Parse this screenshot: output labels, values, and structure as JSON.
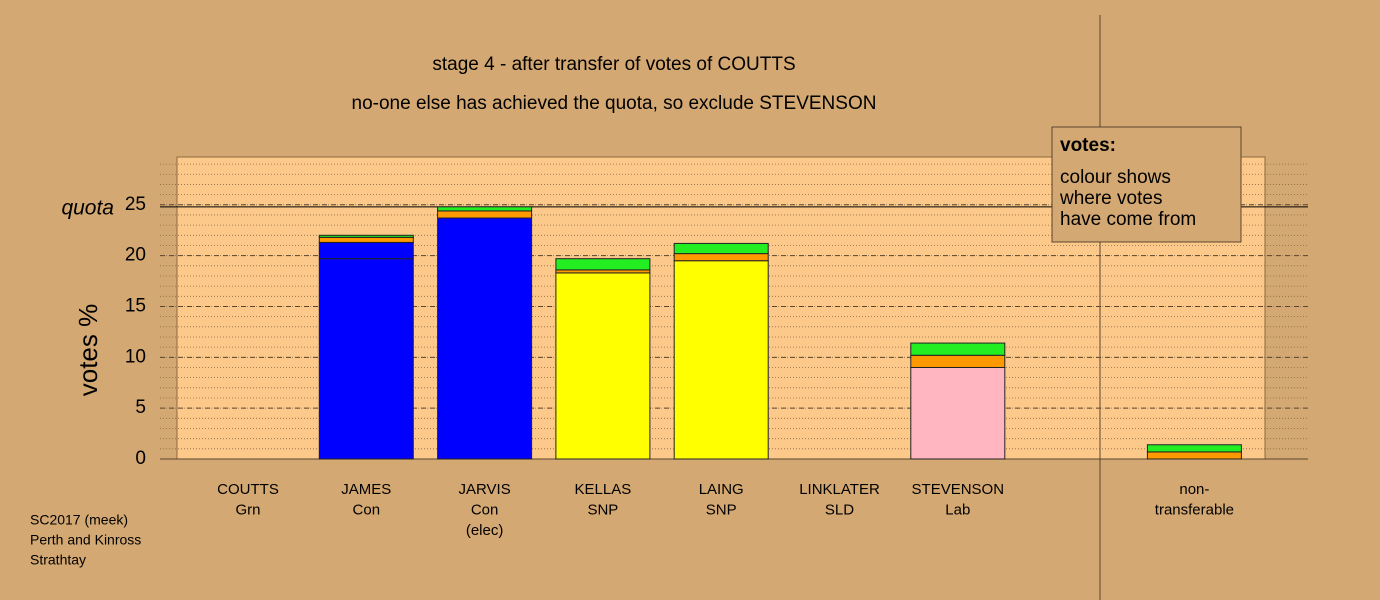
{
  "chart_data": {
    "type": "bar",
    "title": "stage 4 - after transfer of votes of COUTTS",
    "subtitle": "no-one else has achieved the quota, so exclude STEVENSON",
    "y_label": "votes %",
    "categories": [
      [
        "COUTTS",
        "Grn"
      ],
      [
        "JAMES",
        "Con"
      ],
      [
        "JARVIS",
        "Con",
        "(elec)"
      ],
      [
        "KELLAS",
        "SNP"
      ],
      [
        "LAING",
        "SNP"
      ],
      [
        "LINKLATER",
        "SLD"
      ],
      [
        "STEVENSON",
        "Lab"
      ],
      null,
      [
        "non-",
        "transferable"
      ]
    ],
    "series": [
      {
        "color": "#0000ff",
        "values": [
          0,
          19.7,
          23.7,
          0,
          0,
          0,
          0,
          null,
          0
        ]
      },
      {
        "color": "#0000ff",
        "values": [
          0,
          1.6,
          0,
          0,
          0,
          0,
          0,
          null,
          0
        ]
      },
      {
        "color": "#ffff00",
        "values": [
          0,
          0,
          0,
          18.3,
          19.5,
          0,
          0,
          null,
          0
        ]
      },
      {
        "color": "#ffb6c1",
        "values": [
          0,
          0,
          0,
          0,
          0,
          0,
          9.0,
          null,
          0
        ]
      },
      {
        "color": "#ff9900",
        "values": [
          0,
          0.5,
          0.7,
          0.3,
          0.7,
          0,
          1.2,
          null,
          0.7
        ]
      },
      {
        "color": "#22ee22",
        "values": [
          0,
          0.2,
          0.4,
          1.1,
          1.0,
          0,
          1.2,
          null,
          0.7
        ]
      }
    ],
    "ylim": [
      0,
      29.7
    ],
    "yticks": [
      0,
      5,
      10,
      15,
      20,
      25
    ],
    "minor_grid_step": 1,
    "quota": {
      "value": 24.8,
      "label": "quota"
    },
    "legend_box": [
      "votes:",
      "colour shows",
      "where votes",
      "have come from"
    ],
    "footer": [
      "SC2017 (meek)",
      "Perth and Kinross",
      "Strathtay"
    ]
  }
}
